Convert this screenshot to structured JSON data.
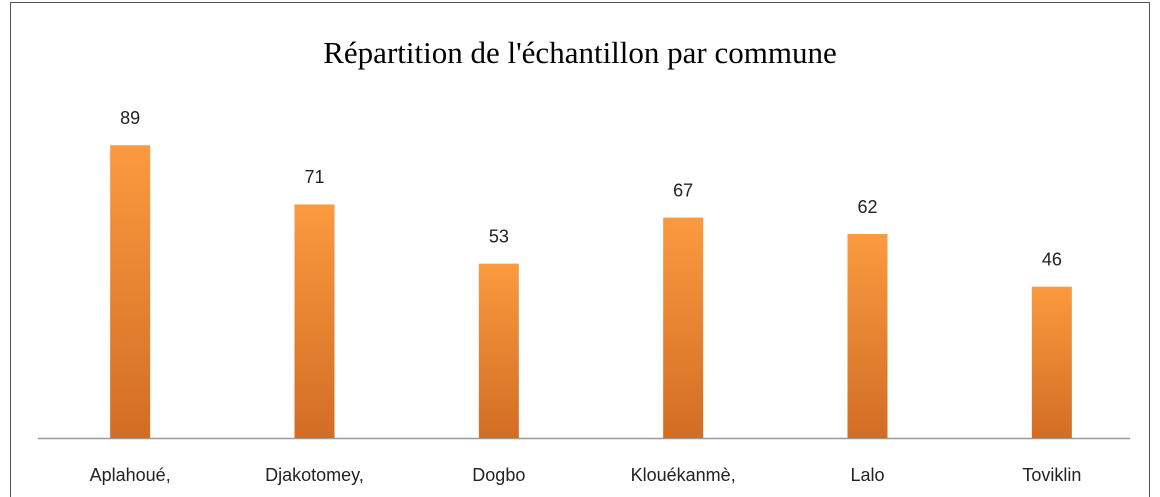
{
  "chart_data": {
    "type": "bar",
    "title": "Répartition de l'échantillon par commune",
    "categories": [
      "Aplahoué,",
      "Djakotomey,",
      "Dogbo",
      "Klouékanmè,",
      "Lalo",
      "Toviklin"
    ],
    "values": [
      89,
      71,
      53,
      67,
      62,
      46
    ],
    "color": "#f7963e",
    "ylim": [
      0,
      100
    ]
  }
}
